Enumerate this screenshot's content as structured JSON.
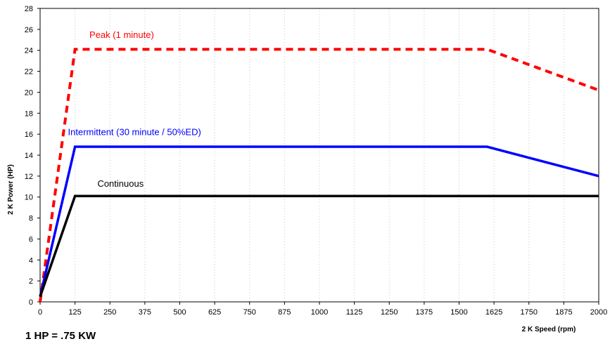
{
  "chart_data": {
    "type": "line",
    "xlabel": "2 K Speed (rpm)",
    "ylabel": "2 K Power (HP)",
    "xlim": [
      0,
      2000
    ],
    "ylim": [
      0,
      28
    ],
    "x_ticks": [
      "0",
      "125",
      "250",
      "375",
      "500",
      "625",
      "750",
      "875",
      "1000",
      "1125",
      "1250",
      "1375",
      "1500",
      "1625",
      "1750",
      "1875",
      "2000"
    ],
    "y_ticks": [
      "0",
      "2",
      "4",
      "6",
      "8",
      "10",
      "12",
      "14",
      "16",
      "18",
      "20",
      "22",
      "24",
      "26",
      "28"
    ],
    "grid": {
      "x": true,
      "y": false,
      "style": "dotted"
    },
    "series": [
      {
        "name": "Peak (1 minute)",
        "color": "#ff0000",
        "style": "dashed",
        "points": [
          [
            0,
            0
          ],
          [
            125,
            24.1
          ],
          [
            1600,
            24.1
          ],
          [
            2000,
            20.2
          ]
        ]
      },
      {
        "name": "Intermittent (30 minute / 50%ED)",
        "color": "#0000ff",
        "style": "solid",
        "points": [
          [
            0,
            0.5
          ],
          [
            125,
            14.8
          ],
          [
            1600,
            14.8
          ],
          [
            2000,
            12.0
          ]
        ]
      },
      {
        "name": "Continuous",
        "color": "#000000",
        "style": "solid",
        "points": [
          [
            0,
            0.5
          ],
          [
            125,
            10.1
          ],
          [
            2000,
            10.1
          ]
        ]
      }
    ]
  },
  "footnote": "1 HP = .75 KW"
}
